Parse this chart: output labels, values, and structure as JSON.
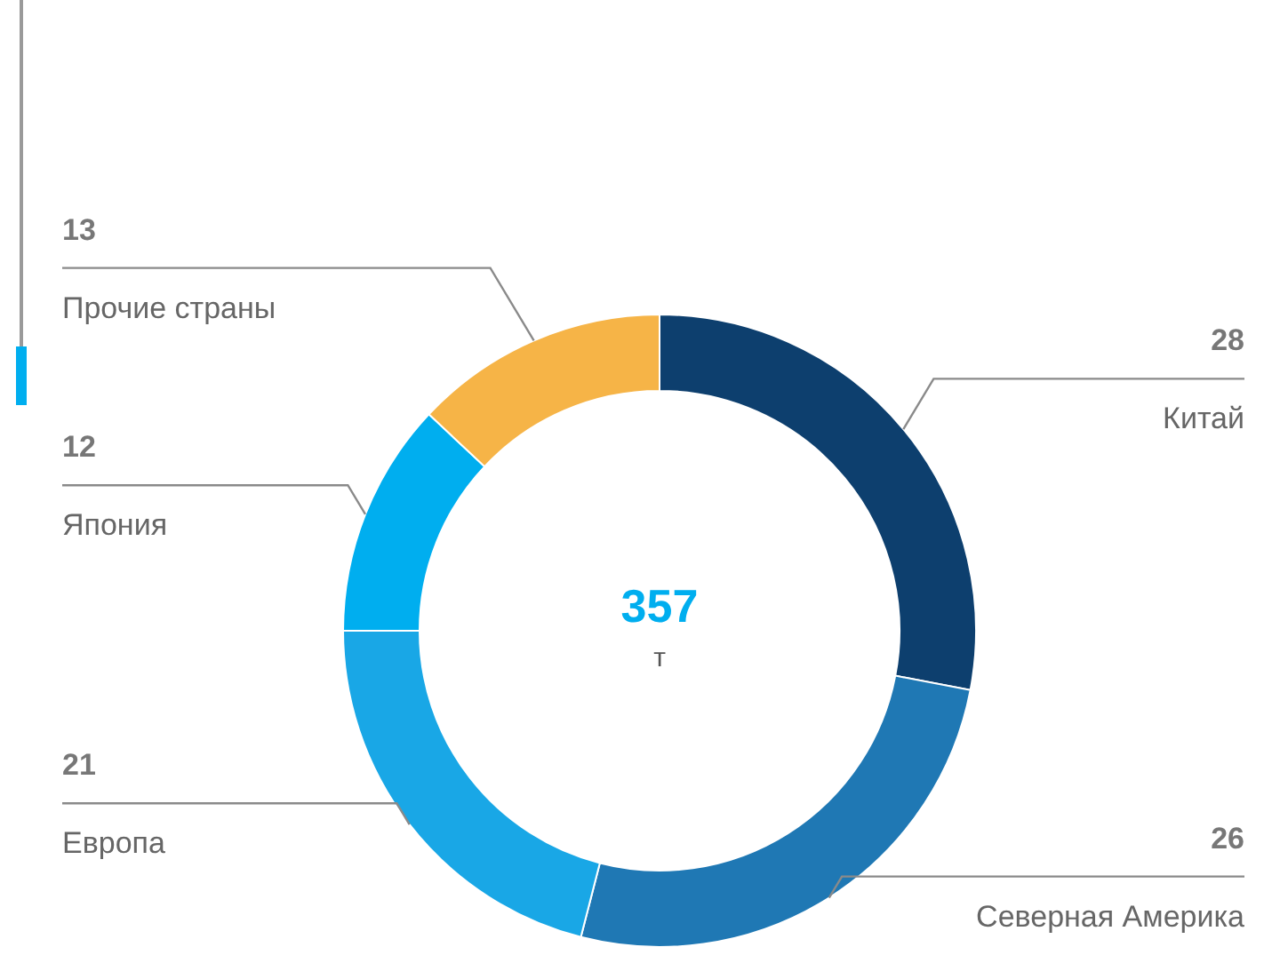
{
  "chart_data": {
    "type": "donut",
    "categories": [
      "Китай",
      "Северная Америка",
      "Европа",
      "Япония",
      "Прочие страны"
    ],
    "values": [
      28,
      26,
      21,
      12,
      13
    ],
    "colors": [
      "#0d3f6e",
      "#1f78b4",
      "#19a7e6",
      "#00aeef",
      "#f6b447"
    ],
    "data_labels": true,
    "annotations": [
      "357",
      "т"
    ]
  }
}
